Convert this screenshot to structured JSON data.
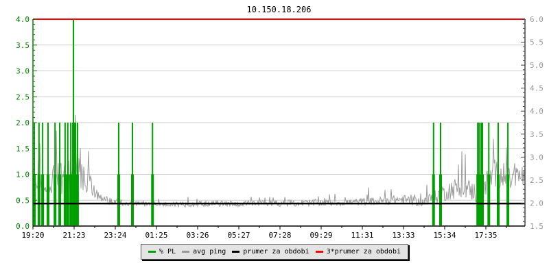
{
  "header": {
    "title": "10.150.18.206"
  },
  "colors": {
    "pl_bar": "#00a000",
    "left_axis": "#008000",
    "right_axis": "#999999",
    "avg_ping_line": "#9c9c9c",
    "grid": "#cccccc",
    "period_avg": "#000000",
    "triple_avg": "#ff0000",
    "x_labels": "#000000",
    "bottom_axis": "#000000",
    "legend_bg": "#e4e4e4"
  },
  "legend": {
    "items": [
      {
        "label": "% PL",
        "color": "#00a000"
      },
      {
        "label": "avg ping",
        "color": "#999999"
      },
      {
        "label": "prumer za obdobi",
        "color": "#000000"
      },
      {
        "label": "3*prumer za obdobi",
        "color": "#ff0000"
      }
    ]
  },
  "chart_data": {
    "type": "line",
    "title": "10.150.18.206",
    "grid": {
      "horizontal_step_left": 0.5,
      "vertical_gridlines": false
    },
    "x_axis": {
      "tick_labels": [
        "19:20",
        "21:23",
        "23:24",
        "01:25",
        "03:26",
        "05:27",
        "07:28",
        "09:29",
        "11:31",
        "13:33",
        "15:34",
        "17:35"
      ],
      "range_minutes": [
        0,
        1469
      ]
    },
    "y_axis_left": {
      "series": "% PL",
      "tick_labels": [
        "0.0",
        "0.5",
        "1.0",
        "1.5",
        "2.0",
        "2.5",
        "3.0",
        "3.5",
        "4.0"
      ],
      "range": [
        0.0,
        4.0
      ]
    },
    "y_axis_right": {
      "series": "avg ping",
      "tick_labels": [
        "1.5",
        "2.0",
        "2.5",
        "3.0",
        "3.5",
        "4.0",
        "4.5",
        "5.0",
        "5.5",
        "6.0"
      ],
      "range": [
        1.5,
        6.0
      ]
    },
    "series": [
      {
        "name": "% PL",
        "type": "bars",
        "axis": "left",
        "points": [
          {
            "time": "19:24",
            "minute": 4,
            "value": 2
          },
          {
            "time": "19:38",
            "minute": 18,
            "value": 2
          },
          {
            "time": "19:49",
            "minute": 29,
            "value": 2
          },
          {
            "time": "20:05",
            "minute": 45,
            "value": 2
          },
          {
            "time": "20:26",
            "minute": 66,
            "value": 2
          },
          {
            "time": "20:40",
            "minute": 80,
            "value": 2
          },
          {
            "time": "20:56",
            "minute": 96,
            "value": 2
          },
          {
            "time": "21:04",
            "minute": 104,
            "value": 2
          },
          {
            "time": "21:13",
            "minute": 113,
            "value": 2
          },
          {
            "time": "21:21",
            "minute": 121,
            "value": 4
          },
          {
            "time": "21:27",
            "minute": 127,
            "value": 2
          },
          {
            "time": "21:33",
            "minute": 133,
            "value": 2
          },
          {
            "time": "23:36",
            "minute": 256,
            "value": 2
          },
          {
            "time": "00:17",
            "minute": 297,
            "value": 2
          },
          {
            "time": "01:17",
            "minute": 357,
            "value": 2
          },
          {
            "time": "15:16",
            "minute": 1196,
            "value": 2
          },
          {
            "time": "15:37",
            "minute": 1217,
            "value": 2
          },
          {
            "time": "17:28",
            "minute": 1328,
            "value": 2
          },
          {
            "time": "17:32",
            "minute": 1332,
            "value": 2
          },
          {
            "time": "17:38",
            "minute": 1338,
            "value": 2
          },
          {
            "time": "17:42",
            "minute": 1342,
            "value": 2
          },
          {
            "time": "18:01",
            "minute": 1361,
            "value": 2
          },
          {
            "time": "18:29",
            "minute": 1389,
            "value": 2
          },
          {
            "time": "18:58",
            "minute": 1418,
            "value": 2
          }
        ]
      },
      {
        "name": "avg ping",
        "type": "noisy-line",
        "axis": "right",
        "anchors": [
          [
            0,
            2.3,
            0.3
          ],
          [
            10,
            2.5,
            0.35
          ],
          [
            30,
            2.45,
            0.35
          ],
          [
            60,
            2.5,
            0.4
          ],
          [
            90,
            2.5,
            0.45
          ],
          [
            110,
            2.55,
            0.5
          ],
          [
            120,
            2.8,
            0.7
          ],
          [
            128,
            3.2,
            0.9
          ],
          [
            135,
            2.9,
            0.6
          ],
          [
            150,
            2.55,
            0.35
          ],
          [
            175,
            2.35,
            0.25
          ],
          [
            200,
            2.15,
            0.12
          ],
          [
            230,
            2.05,
            0.1
          ],
          [
            270,
            2.0,
            0.07
          ],
          [
            330,
            1.98,
            0.06
          ],
          [
            400,
            1.97,
            0.07
          ],
          [
            470,
            1.98,
            0.07
          ],
          [
            540,
            1.99,
            0.07
          ],
          [
            610,
            1.98,
            0.07
          ],
          [
            680,
            1.99,
            0.08
          ],
          [
            750,
            2.0,
            0.08
          ],
          [
            820,
            2.0,
            0.09
          ],
          [
            890,
            2.01,
            0.08
          ],
          [
            960,
            2.02,
            0.09
          ],
          [
            1030,
            2.04,
            0.1
          ],
          [
            1100,
            2.08,
            0.12
          ],
          [
            1160,
            2.02,
            0.1
          ],
          [
            1190,
            2.1,
            0.15
          ],
          [
            1220,
            2.2,
            0.2
          ],
          [
            1250,
            2.3,
            0.25
          ],
          [
            1285,
            2.35,
            0.25
          ],
          [
            1315,
            2.25,
            0.25
          ],
          [
            1335,
            2.15,
            0.25
          ],
          [
            1355,
            2.45,
            0.3
          ],
          [
            1380,
            2.65,
            0.35
          ],
          [
            1395,
            2.6,
            0.3
          ],
          [
            1420,
            2.5,
            0.3
          ],
          [
            1445,
            2.55,
            0.3
          ],
          [
            1469,
            2.6,
            0.3
          ]
        ]
      },
      {
        "name": "prumer za obdobi",
        "type": "hline",
        "axis": "right",
        "value": 1.99
      },
      {
        "name": "3*prumer za obdobi",
        "type": "hline",
        "axis": "right",
        "value": 6.0
      }
    ]
  }
}
